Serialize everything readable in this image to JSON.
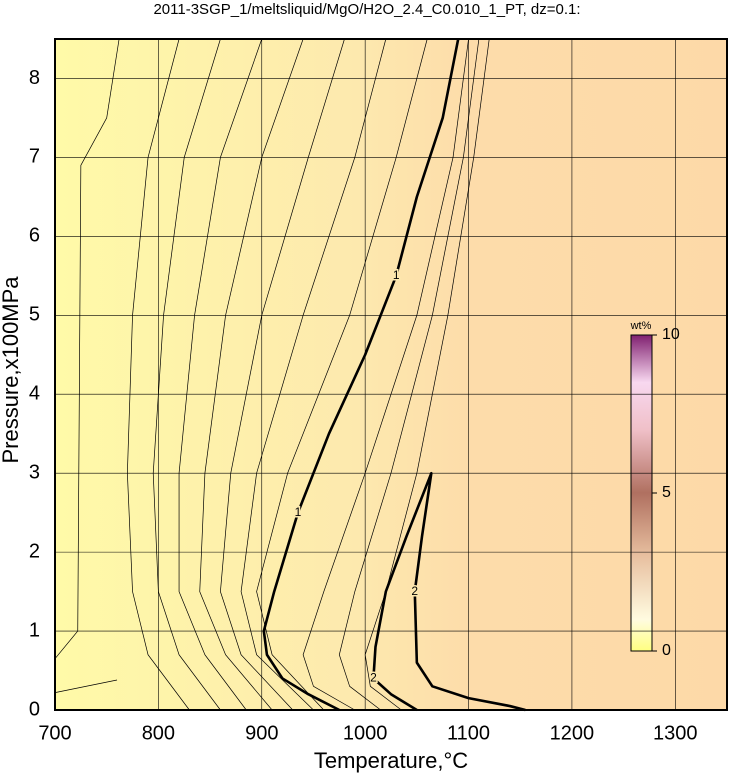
{
  "chart_data": {
    "type": "contour",
    "title": "2011-3SGP_1/meltsliquid/MgO/H2O_2.4_C0.010_1_PT, dz=0.1:",
    "x_label": "Temperature,°C",
    "y_label": "Pressure,x100MPa",
    "xlim": [
      700,
      1350
    ],
    "xticks": [
      700,
      800,
      900,
      1000,
      1100,
      1200,
      1300
    ],
    "ylim": [
      0,
      8.5
    ],
    "yticks": [
      0,
      1,
      2,
      3,
      4,
      5,
      6,
      7,
      8
    ],
    "grid": true,
    "colorbar": {
      "label": "wt%",
      "lim": [
        0,
        10
      ],
      "ticks": [
        0,
        5,
        10
      ]
    },
    "series": [
      {
        "name": "1",
        "thick": true,
        "label_at": [
          3,
          6
        ],
        "x": [
          1090,
          1075,
          1050,
          1030,
          1000,
          965,
          935,
          912,
          902,
          905,
          920,
          945,
          975
        ],
        "y": [
          8.5,
          7.5,
          6.5,
          5.5,
          4.5,
          3.5,
          2.5,
          1.5,
          1.0,
          0.7,
          0.4,
          0.2,
          0.0
        ]
      },
      {
        "name": "2",
        "thick": true,
        "label_at": [
          2,
          8
        ],
        "x": [
          1050,
          1025,
          1008,
          1010,
          1020,
          1040,
          1064,
          1055,
          1048,
          1050,
          1065,
          1100,
          1140,
          1155
        ],
        "y": [
          0.0,
          0.2,
          0.4,
          0.8,
          1.5,
          2.2,
          3.0,
          2.2,
          1.5,
          0.6,
          0.3,
          0.15,
          0.05,
          0.0
        ]
      },
      {
        "thick": false,
        "x": [
          700,
          722,
          725,
          750,
          762
        ],
        "y": [
          0.65,
          1.0,
          6.9,
          7.5,
          8.5
        ]
      },
      {
        "thick": false,
        "x": [
          700,
          760
        ],
        "y": [
          0.22,
          0.38
        ]
      },
      {
        "thick": false,
        "x": [
          820,
          790,
          775,
          770,
          775,
          790,
          830
        ],
        "y": [
          8.5,
          7.0,
          5.0,
          3.0,
          1.5,
          0.7,
          0.0
        ]
      },
      {
        "thick": false,
        "x": [
          860,
          825,
          805,
          795,
          800,
          820,
          860
        ],
        "y": [
          8.5,
          7.0,
          5.0,
          3.0,
          1.5,
          0.7,
          0.0
        ]
      },
      {
        "thick": false,
        "x": [
          900,
          860,
          835,
          820,
          820,
          845,
          885
        ],
        "y": [
          8.5,
          7.0,
          5.0,
          3.0,
          1.5,
          0.7,
          0.0
        ]
      },
      {
        "thick": false,
        "x": [
          940,
          900,
          865,
          845,
          840,
          865,
          910
        ],
        "y": [
          8.5,
          7.0,
          5.0,
          3.0,
          1.5,
          0.7,
          0.0
        ]
      },
      {
        "thick": false,
        "x": [
          980,
          945,
          900,
          870,
          860,
          880,
          930
        ],
        "y": [
          8.5,
          7.0,
          5.0,
          3.0,
          1.5,
          0.7,
          0.0
        ]
      },
      {
        "thick": false,
        "x": [
          1020,
          990,
          940,
          895,
          880,
          895,
          950
        ],
        "y": [
          8.5,
          7.0,
          5.0,
          3.0,
          1.5,
          0.7,
          0.0
        ]
      },
      {
        "thick": false,
        "x": [
          1060,
          1030,
          985,
          925,
          895,
          910,
          960
        ],
        "y": [
          8.5,
          7.0,
          5.0,
          3.0,
          1.5,
          0.7,
          0.0
        ]
      },
      {
        "thick": false,
        "x": [
          1100,
          1085,
          1050,
          1000,
          960,
          940,
          950,
          990
        ],
        "y": [
          8.5,
          7.0,
          5.0,
          3.0,
          1.5,
          0.7,
          0.3,
          0.0
        ]
      },
      {
        "thick": false,
        "x": [
          1110,
          1095,
          1065,
          1025,
          990,
          975,
          985,
          1015
        ],
        "y": [
          8.5,
          7.0,
          5.0,
          3.0,
          1.5,
          0.7,
          0.3,
          0.0
        ]
      },
      {
        "thick": false,
        "x": [
          1120,
          1105,
          1080,
          1050,
          1020,
          1000,
          1005,
          1035
        ],
        "y": [
          8.5,
          7.0,
          5.0,
          3.0,
          1.5,
          0.7,
          0.3,
          0.0
        ]
      }
    ]
  }
}
